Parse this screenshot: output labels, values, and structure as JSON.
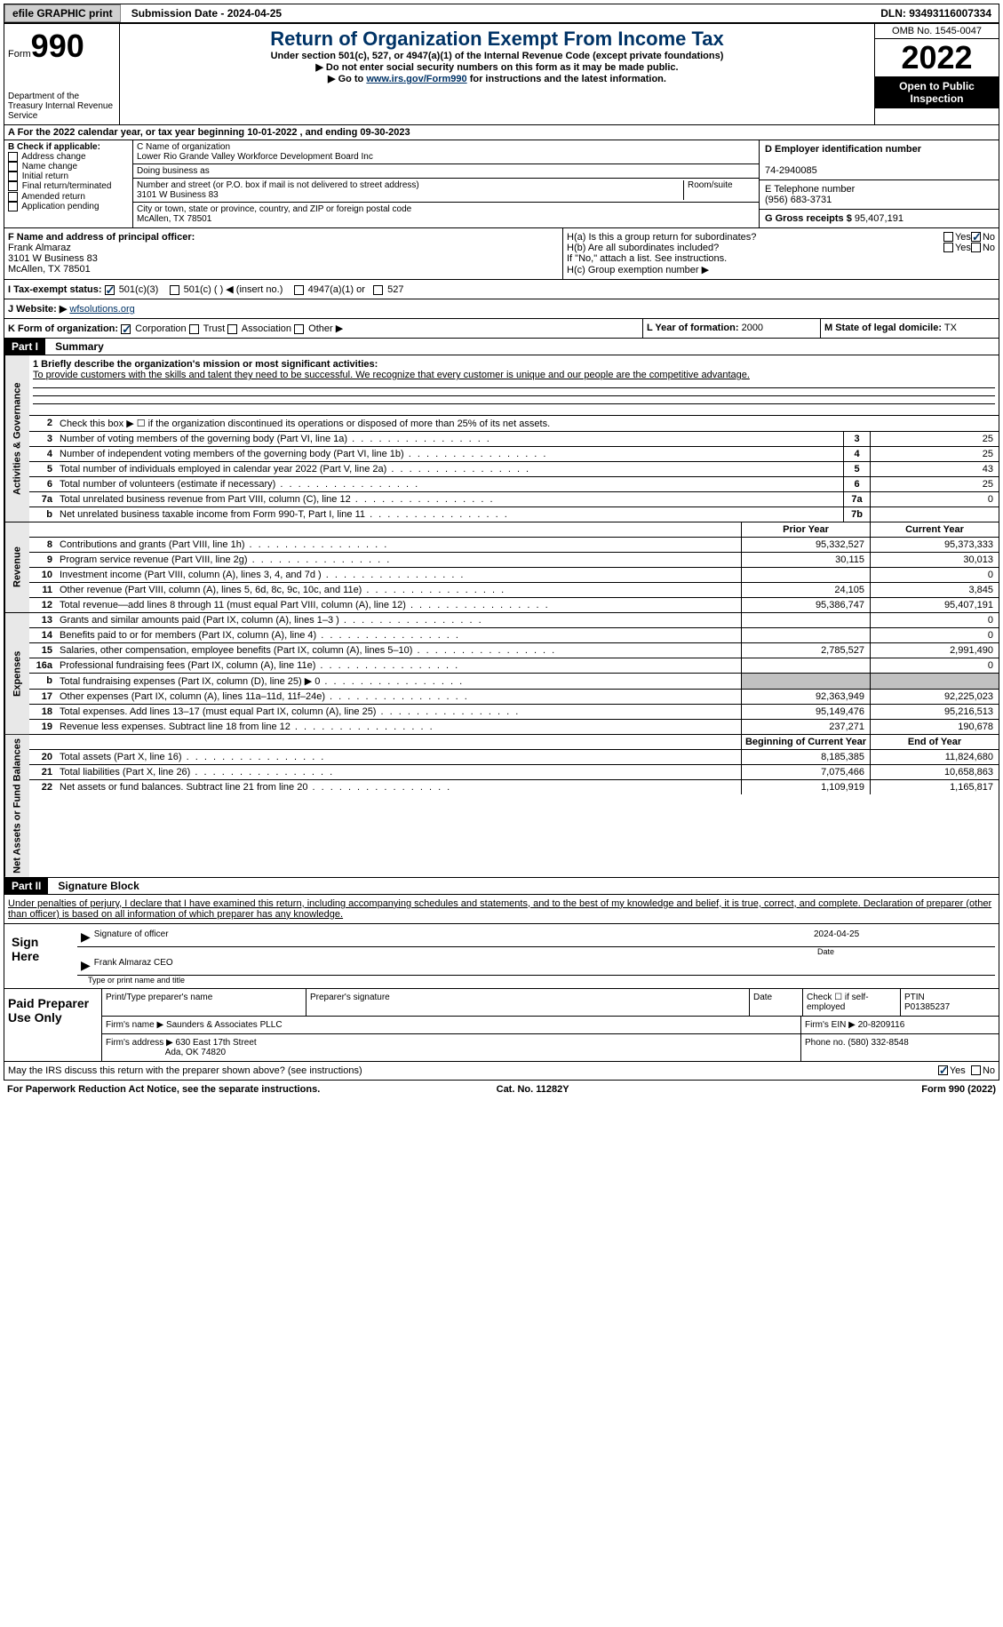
{
  "top": {
    "efile": "efile GRAPHIC print",
    "submission": "Submission Date - 2024-04-25",
    "dln": "DLN: 93493116007334"
  },
  "header": {
    "form": "Form",
    "num": "990",
    "dept": "Department of the Treasury Internal Revenue Service",
    "title": "Return of Organization Exempt From Income Tax",
    "sub1": "Under section 501(c), 527, or 4947(a)(1) of the Internal Revenue Code (except private foundations)",
    "sub2": "▶ Do not enter social security numbers on this form as it may be made public.",
    "sub3_pre": "▶ Go to ",
    "sub3_link": "www.irs.gov/Form990",
    "sub3_post": " for instructions and the latest information.",
    "omb": "OMB No. 1545-0047",
    "year": "2022",
    "inspection": "Open to Public Inspection"
  },
  "rowA": "A For the 2022 calendar year, or tax year beginning 10-01-2022   , and ending 09-30-2023",
  "checkB": {
    "label": "B Check if applicable:",
    "items": [
      "Address change",
      "Name change",
      "Initial return",
      "Final return/terminated",
      "Amended return",
      "Application pending"
    ]
  },
  "orgC": {
    "label": "C Name of organization",
    "name": "Lower Rio Grande Valley Workforce Development Board Inc",
    "dba_label": "Doing business as",
    "addr_label": "Number and street (or P.O. box if mail is not delivered to street address)",
    "addr": "3101 W Business 83",
    "room_label": "Room/suite",
    "city_label": "City or town, state or province, country, and ZIP or foreign postal code",
    "city": "McAllen, TX  78501"
  },
  "colD": {
    "ein_label": "D Employer identification number",
    "ein": "74-2940085",
    "phone_label": "E Telephone number",
    "phone": "(956) 683-3731",
    "gross_label": "G Gross receipts $",
    "gross": "95,407,191"
  },
  "fBlock": {
    "label": "F Name and address of principal officer:",
    "name": "Frank Almaraz",
    "addr1": "3101 W Business 83",
    "addr2": "McAllen, TX  78501"
  },
  "hBlock": {
    "ha": "H(a)  Is this a group return for subordinates?",
    "hb": "H(b)  Are all subordinates included?",
    "hb_note": "If \"No,\" attach a list. See instructions.",
    "hc": "H(c)  Group exemption number ▶",
    "yes": "Yes",
    "no": "No"
  },
  "rowI": {
    "label": "I  Tax-exempt status:",
    "opt1": "501(c)(3)",
    "opt2": "501(c) (  ) ◀ (insert no.)",
    "opt3": "4947(a)(1) or",
    "opt4": "527"
  },
  "rowJ": {
    "label": "J  Website: ▶",
    "val": "wfsolutions.org"
  },
  "rowK": {
    "label": "K Form of organization:",
    "opts": [
      "Corporation",
      "Trust",
      "Association",
      "Other ▶"
    ],
    "l_label": "L Year of formation:",
    "l_val": "2000",
    "m_label": "M State of legal domicile:",
    "m_val": "TX"
  },
  "part1": {
    "header": "Part I",
    "title": "Summary",
    "side1": "Activities & Governance",
    "side2": "Revenue",
    "side3": "Expenses",
    "side4": "Net Assets or Fund Balances",
    "line1_label": "1  Briefly describe the organization's mission or most significant activities:",
    "line1_text": "To provide customers with the skills and talent they need to be successful. We recognize that every customer is unique and our people are the competitive advantage.",
    "line2": "Check this box ▶ ☐  if the organization discontinued its operations or disposed of more than 25% of its net assets.",
    "rows_gov": [
      {
        "n": "3",
        "d": "Number of voting members of the governing body (Part VI, line 1a)",
        "b": "3",
        "v": "25"
      },
      {
        "n": "4",
        "d": "Number of independent voting members of the governing body (Part VI, line 1b)",
        "b": "4",
        "v": "25"
      },
      {
        "n": "5",
        "d": "Total number of individuals employed in calendar year 2022 (Part V, line 2a)",
        "b": "5",
        "v": "43"
      },
      {
        "n": "6",
        "d": "Total number of volunteers (estimate if necessary)",
        "b": "6",
        "v": "25"
      },
      {
        "n": "7a",
        "d": "Total unrelated business revenue from Part VIII, column (C), line 12",
        "b": "7a",
        "v": "0"
      },
      {
        "n": "b",
        "d": "Net unrelated business taxable income from Form 990-T, Part I, line 11",
        "b": "7b",
        "v": ""
      }
    ],
    "prior_label": "Prior Year",
    "current_label": "Current Year",
    "rows_rev": [
      {
        "n": "8",
        "d": "Contributions and grants (Part VIII, line 1h)",
        "p": "95,332,527",
        "c": "95,373,333"
      },
      {
        "n": "9",
        "d": "Program service revenue (Part VIII, line 2g)",
        "p": "30,115",
        "c": "30,013"
      },
      {
        "n": "10",
        "d": "Investment income (Part VIII, column (A), lines 3, 4, and 7d )",
        "p": "",
        "c": "0"
      },
      {
        "n": "11",
        "d": "Other revenue (Part VIII, column (A), lines 5, 6d, 8c, 9c, 10c, and 11e)",
        "p": "24,105",
        "c": "3,845"
      },
      {
        "n": "12",
        "d": "Total revenue—add lines 8 through 11 (must equal Part VIII, column (A), line 12)",
        "p": "95,386,747",
        "c": "95,407,191"
      }
    ],
    "rows_exp": [
      {
        "n": "13",
        "d": "Grants and similar amounts paid (Part IX, column (A), lines 1–3 )",
        "p": "",
        "c": "0"
      },
      {
        "n": "14",
        "d": "Benefits paid to or for members (Part IX, column (A), line 4)",
        "p": "",
        "c": "0"
      },
      {
        "n": "15",
        "d": "Salaries, other compensation, employee benefits (Part IX, column (A), lines 5–10)",
        "p": "2,785,527",
        "c": "2,991,490"
      },
      {
        "n": "16a",
        "d": "Professional fundraising fees (Part IX, column (A), line 11e)",
        "p": "",
        "c": "0"
      },
      {
        "n": "b",
        "d": "Total fundraising expenses (Part IX, column (D), line 25) ▶ 0",
        "p": "grey",
        "c": "grey"
      },
      {
        "n": "17",
        "d": "Other expenses (Part IX, column (A), lines 11a–11d, 11f–24e)",
        "p": "92,363,949",
        "c": "92,225,023"
      },
      {
        "n": "18",
        "d": "Total expenses. Add lines 13–17 (must equal Part IX, column (A), line 25)",
        "p": "95,149,476",
        "c": "95,216,513"
      },
      {
        "n": "19",
        "d": "Revenue less expenses. Subtract line 18 from line 12",
        "p": "237,271",
        "c": "190,678"
      }
    ],
    "begin_label": "Beginning of Current Year",
    "end_label": "End of Year",
    "rows_net": [
      {
        "n": "20",
        "d": "Total assets (Part X, line 16)",
        "p": "8,185,385",
        "c": "11,824,680"
      },
      {
        "n": "21",
        "d": "Total liabilities (Part X, line 26)",
        "p": "7,075,466",
        "c": "10,658,863"
      },
      {
        "n": "22",
        "d": "Net assets or fund balances. Subtract line 21 from line 20",
        "p": "1,109,919",
        "c": "1,165,817"
      }
    ]
  },
  "part2": {
    "header": "Part II",
    "title": "Signature Block",
    "declaration": "Under penalties of perjury, I declare that I have examined this return, including accompanying schedules and statements, and to the best of my knowledge and belief, it is true, correct, and complete. Declaration of preparer (other than officer) is based on all information of which preparer has any knowledge.",
    "sign_here": "Sign Here",
    "sig_officer": "Signature of officer",
    "sig_date": "2024-04-25",
    "sig_name": "Frank Almaraz CEO",
    "sig_name_label": "Type or print name and title",
    "date_label": "Date",
    "paid_label": "Paid Preparer Use Only",
    "prep_name_label": "Print/Type preparer's name",
    "prep_sig_label": "Preparer's signature",
    "check_self": "Check ☐ if self-employed",
    "ptin_label": "PTIN",
    "ptin": "P01385237",
    "firm_name_label": "Firm's name   ▶",
    "firm_name": "Saunders & Associates PLLC",
    "firm_ein_label": "Firm's EIN ▶",
    "firm_ein": "20-8209116",
    "firm_addr_label": "Firm's address ▶",
    "firm_addr": "630 East 17th Street",
    "firm_addr2": "Ada, OK  74820",
    "phone_label": "Phone no.",
    "phone": "(580) 332-8548",
    "discuss": "May the IRS discuss this return with the preparer shown above? (see instructions)",
    "yes": "Yes",
    "no": "No"
  },
  "footer": {
    "left": "For Paperwork Reduction Act Notice, see the separate instructions.",
    "mid": "Cat. No. 11282Y",
    "right": "Form 990 (2022)"
  }
}
